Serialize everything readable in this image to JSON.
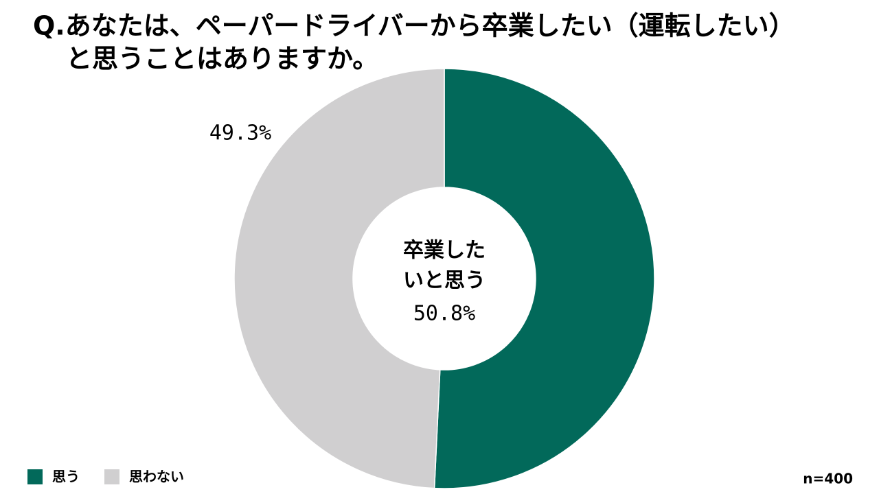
{
  "chart_data": {
    "type": "donut",
    "title": [
      "Q.あなたは、ペーパードライバーから卒業したい（運転したい）",
      "と思うことはありますか。"
    ],
    "categories": [
      "思う",
      "思わない"
    ],
    "values": [
      50.8,
      49.3
    ],
    "value_labels": [
      "50.8%",
      "49.3%"
    ],
    "colors": [
      "#02695a",
      "#d0cfd0"
    ],
    "center_label": [
      "卒業した",
      "いと思う"
    ],
    "note": "n=400",
    "legend": "bottom-left"
  }
}
